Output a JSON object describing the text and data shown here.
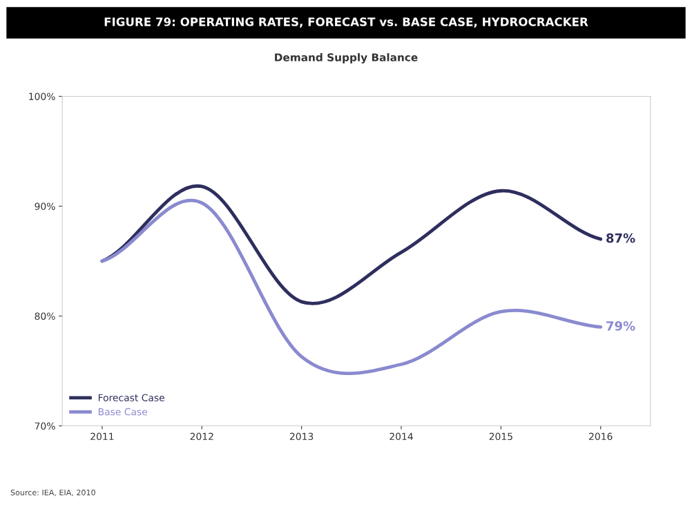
{
  "chart_data": {
    "type": "line",
    "title": "FIGURE 79: OPERATING RATES, FORECAST vs. BASE CASE, HYDROCRACKER",
    "subtitle": "Demand Supply Balance",
    "categories": [
      "2011",
      "2012",
      "2013",
      "2014",
      "2015",
      "2016"
    ],
    "series": [
      {
        "name": "Forecast Case",
        "color": "#2e2e5e",
        "values": [
          85,
          91.8,
          81.3,
          85.8,
          91.4,
          87
        ],
        "value_labels": [
          null,
          null,
          null,
          null,
          null,
          "87%"
        ]
      },
      {
        "name": "Base Case",
        "color": "#8a8ad0",
        "values": [
          85,
          90.3,
          76.3,
          75.6,
          80.4,
          79
        ],
        "value_labels": [
          null,
          null,
          null,
          null,
          null,
          "79%"
        ]
      }
    ],
    "ylim": [
      70,
      100
    ],
    "yticks": [
      {
        "value": 70,
        "label": "70%"
      },
      {
        "value": 80,
        "label": "80%"
      },
      {
        "value": 90,
        "label": "90%"
      },
      {
        "value": 100,
        "label": "100%"
      }
    ],
    "grid": false,
    "legend": "bottom left",
    "marker": "none",
    "line_style": "solid",
    "annotations": [
      "Source: IEA, EIA, 2010"
    ]
  }
}
